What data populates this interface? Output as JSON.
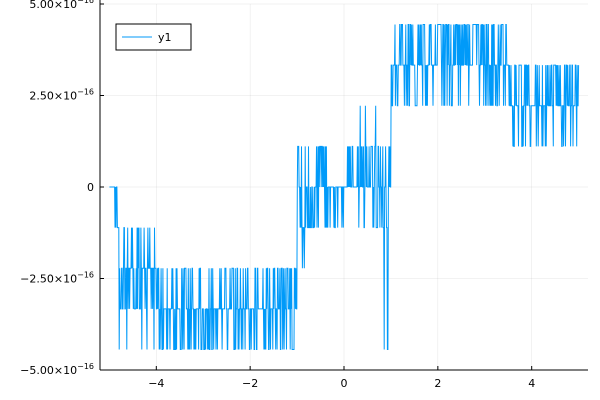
{
  "chart_data": {
    "type": "line",
    "title": "",
    "xlabel": "",
    "ylabel": "",
    "xlim": [
      -5.2,
      5.2
    ],
    "ylim": [
      -5e-16,
      5e-16
    ],
    "x_ticks": [
      {
        "value": -4,
        "label": "−4"
      },
      {
        "value": -2,
        "label": "−2"
      },
      {
        "value": 0,
        "label": "0"
      },
      {
        "value": 2,
        "label": "2"
      },
      {
        "value": 4,
        "label": "4"
      }
    ],
    "y_ticks": [
      {
        "value": -5e-16,
        "mantissa": "−5.00×10",
        "exp": "−16"
      },
      {
        "value": -2.5e-16,
        "mantissa": "−2.50×10",
        "exp": "−16"
      },
      {
        "value": 0,
        "mantissa": "0",
        "exp": ""
      },
      {
        "value": 2.5e-16,
        "mantissa": "2.50×10",
        "exp": "−16"
      },
      {
        "value": 5e-16,
        "mantissa": "5.00×10",
        "exp": "−16"
      }
    ],
    "grid": true,
    "legend": "top-left",
    "series": [
      {
        "name": "y1",
        "color": "#009af9",
        "x_start": -5,
        "x_end": 5,
        "points": 1000,
        "levels": [
          -4.44e-16,
          -3.33e-16,
          -2.22e-16,
          -1.11e-16,
          0,
          1.11e-16,
          2.22e-16,
          3.33e-16,
          4.44e-16
        ]
      }
    ]
  }
}
